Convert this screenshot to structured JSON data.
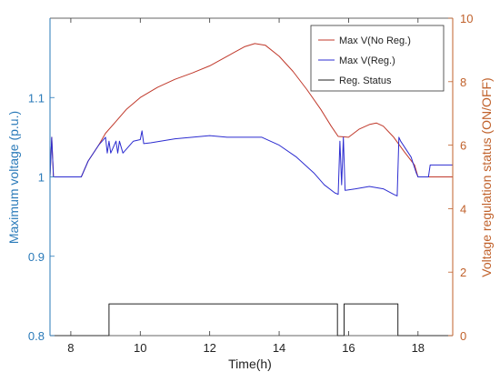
{
  "chart_data": {
    "type": "line",
    "xlabel": "Time(h)",
    "ylabel_left": "Maximum voltage (p.u.)",
    "ylabel_right": "Voltage regulation status (ON/OFF)",
    "xlim": [
      7.4,
      19.0
    ],
    "ylim_left": [
      0.8,
      1.2
    ],
    "ylim_right": [
      0,
      10
    ],
    "x_ticks": [
      8,
      10,
      12,
      14,
      16,
      18
    ],
    "y_left_ticks": [
      0.8,
      0.9,
      1,
      1.1
    ],
    "y_left_tick_labels": [
      "0.8",
      "0.9",
      "1",
      "1.1"
    ],
    "y_right_ticks": [
      0,
      2,
      4,
      6,
      8,
      10
    ],
    "grid": false,
    "legend_position": "top-right",
    "colors": {
      "left_axis": "#2a7ab9",
      "right_axis": "#c0612b",
      "frame": "#333333"
    },
    "series": [
      {
        "name": "Max V(No Reg.)",
        "axis": "left",
        "color": "#c0392b",
        "x": [
          7.4,
          7.45,
          7.5,
          8.3,
          8.5,
          8.8,
          9.0,
          9.3,
          9.6,
          10.0,
          10.5,
          11.0,
          11.5,
          12.0,
          12.5,
          13.0,
          13.3,
          13.6,
          14.0,
          14.4,
          14.8,
          15.2,
          15.5,
          15.7,
          16.0,
          16.3,
          16.6,
          16.8,
          17.0,
          17.3,
          17.6,
          17.9,
          18.0,
          19.0
        ],
        "y": [
          1.0,
          1.05,
          1.0,
          1.0,
          1.02,
          1.04,
          1.055,
          1.07,
          1.085,
          1.1,
          1.113,
          1.123,
          1.131,
          1.14,
          1.152,
          1.164,
          1.168,
          1.166,
          1.152,
          1.133,
          1.11,
          1.085,
          1.064,
          1.051,
          1.05,
          1.06,
          1.066,
          1.068,
          1.064,
          1.05,
          1.032,
          1.015,
          1.0,
          1.0
        ]
      },
      {
        "name": "Max V(Reg.)",
        "axis": "left",
        "color": "#2c2cd0",
        "x": [
          7.4,
          7.45,
          7.5,
          8.3,
          8.5,
          8.8,
          9.0,
          9.05,
          9.1,
          9.15,
          9.3,
          9.35,
          9.4,
          9.5,
          9.8,
          10.0,
          10.05,
          10.1,
          10.3,
          11.0,
          12.0,
          12.5,
          13.0,
          13.5,
          14.0,
          14.5,
          15.0,
          15.3,
          15.6,
          15.7,
          15.75,
          15.8,
          15.85,
          15.9,
          16.2,
          16.6,
          17.0,
          17.3,
          17.4,
          17.45,
          17.5,
          17.8,
          17.95,
          18.0,
          18.3,
          18.35,
          19.0
        ],
        "y": [
          1.0,
          1.05,
          1.0,
          1.0,
          1.02,
          1.04,
          1.05,
          1.03,
          1.045,
          1.03,
          1.045,
          1.03,
          1.045,
          1.03,
          1.045,
          1.047,
          1.058,
          1.042,
          1.043,
          1.048,
          1.052,
          1.05,
          1.05,
          1.05,
          1.04,
          1.025,
          1.005,
          0.99,
          0.98,
          0.978,
          1.045,
          0.99,
          1.05,
          0.983,
          0.985,
          0.988,
          0.985,
          0.978,
          0.976,
          1.05,
          1.045,
          1.025,
          1.005,
          1.0,
          1.0,
          1.015,
          1.015
        ]
      },
      {
        "name": "Reg. Status",
        "axis": "right",
        "color": "#222222",
        "x": [
          7.4,
          9.1,
          9.1,
          15.68,
          15.68,
          15.87,
          15.87,
          17.42,
          17.42,
          19.0
        ],
        "y": [
          0,
          0,
          1,
          1,
          0,
          0,
          1,
          1,
          0,
          0
        ]
      }
    ]
  }
}
